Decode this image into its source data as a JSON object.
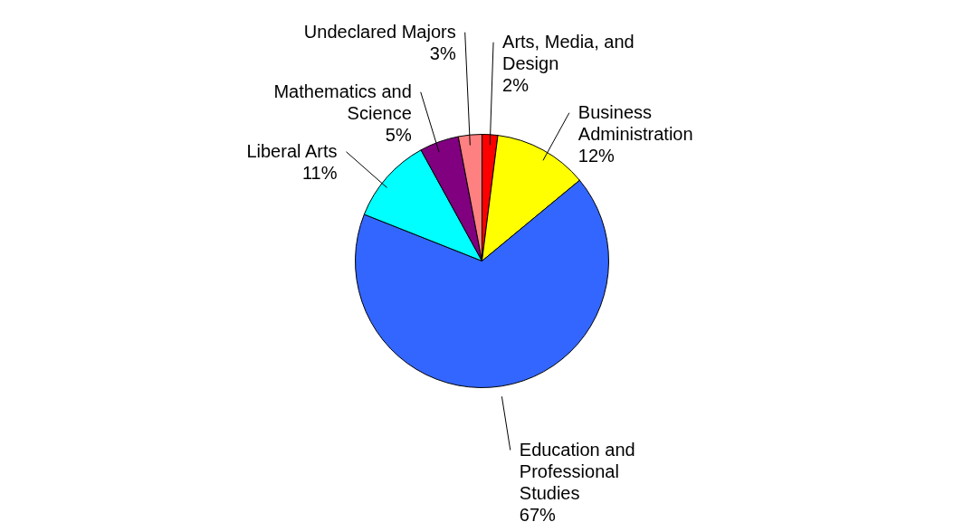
{
  "chart_data": {
    "type": "pie",
    "categories": [
      "Arts, Media, and Design",
      "Business Administration",
      "Education and Professional Studies",
      "Liberal Arts",
      "Mathematics and Science",
      "Undeclared Majors"
    ],
    "values": [
      2,
      12,
      67,
      11,
      5,
      3
    ],
    "colors": [
      "#ff0000",
      "#ffff00",
      "#3366ff",
      "#00ffff",
      "#800080",
      "#ff8080"
    ],
    "value_labels": [
      "2%",
      "12%",
      "67%",
      "11%",
      "5%",
      "3%"
    ]
  }
}
